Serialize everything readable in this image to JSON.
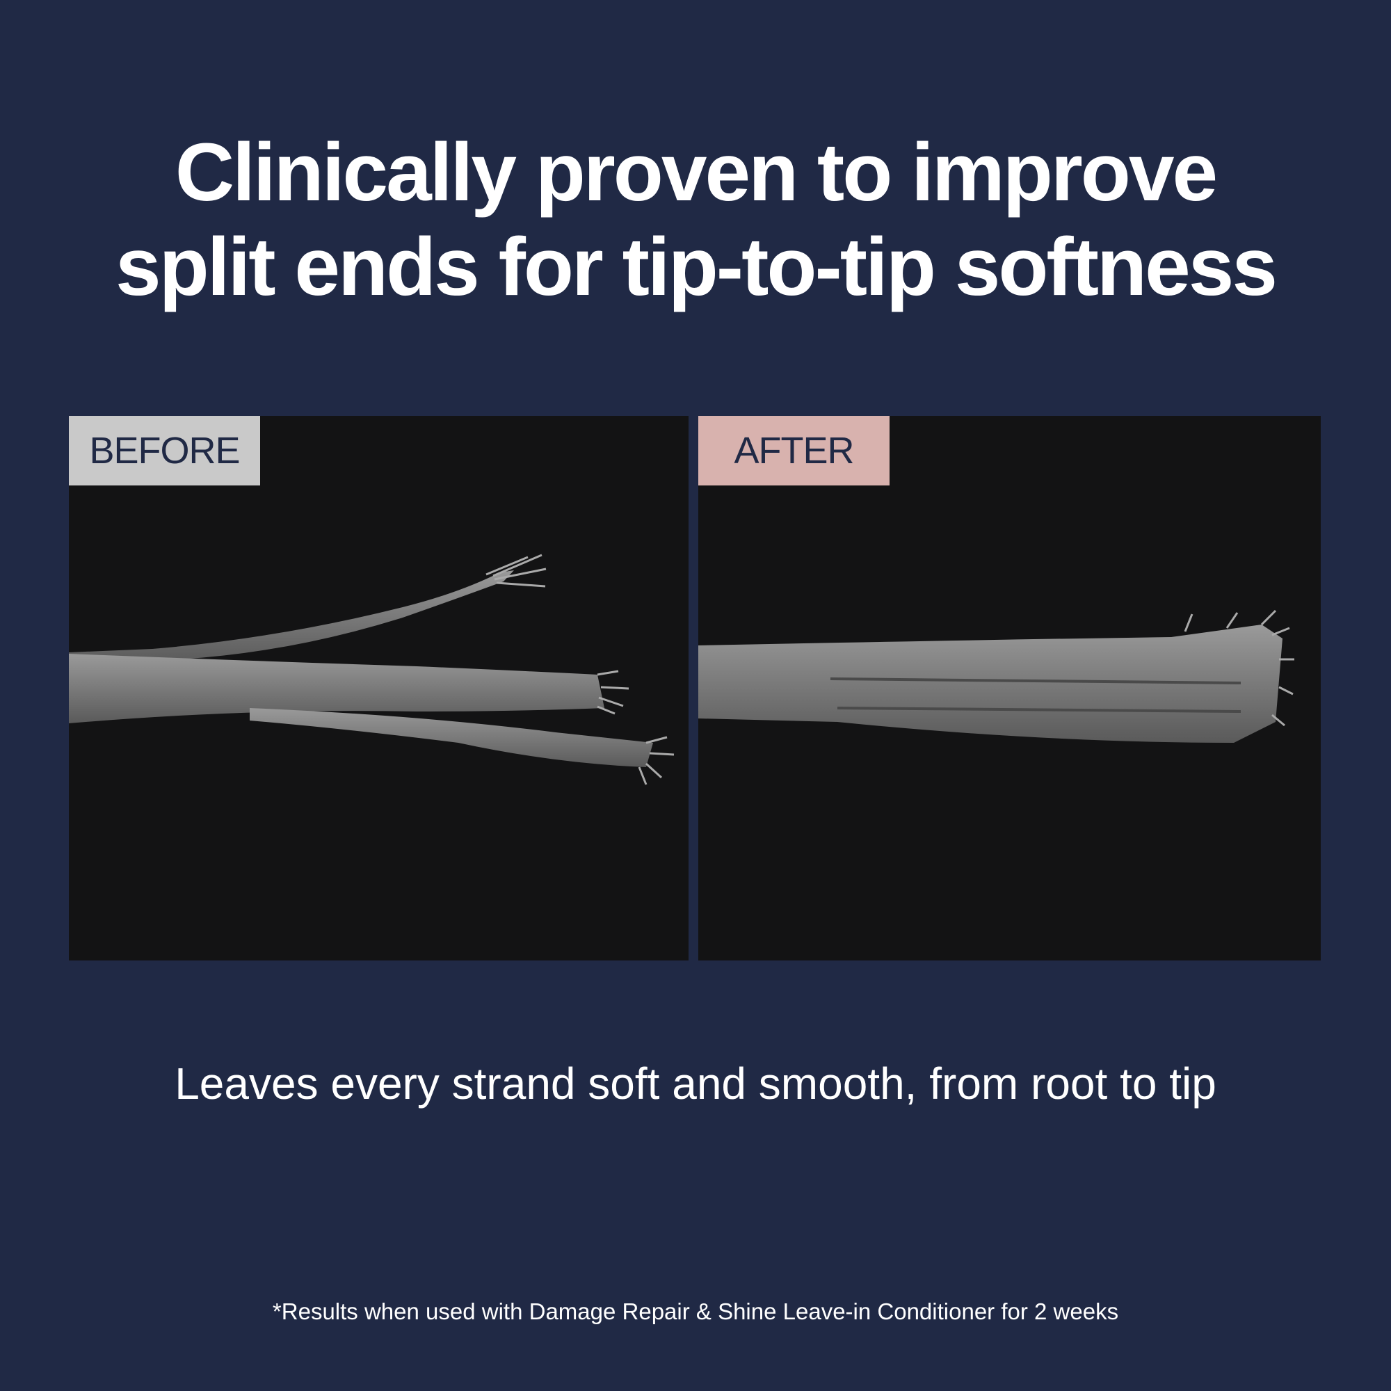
{
  "headline": {
    "line1": "Clinically proven to improve",
    "line2": "split ends for tip-to-tip softness"
  },
  "comparison": {
    "before": {
      "label": "BEFORE",
      "tag_color": "#c9c9c9"
    },
    "after": {
      "label": "AFTER",
      "tag_color": "#d8b2ae"
    }
  },
  "subtitle": "Leaves every strand soft and smooth, from root to tip",
  "footnote": "*Results when used with Damage Repair & Shine Leave-in Conditioner for 2 weeks",
  "colors": {
    "background": "#202945",
    "text": "#ffffff",
    "label_text": "#202945"
  }
}
